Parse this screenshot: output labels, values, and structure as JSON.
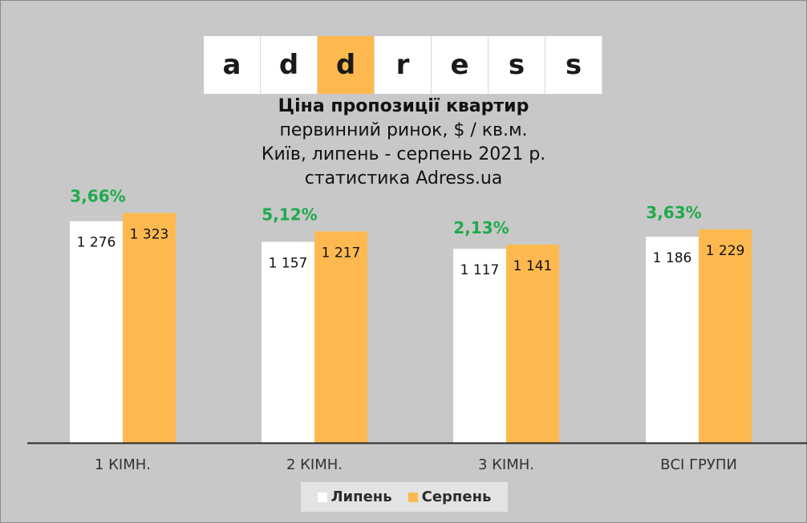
{
  "logo": {
    "letters": [
      "a",
      "d",
      "d",
      "r",
      "e",
      "s",
      "s"
    ],
    "highlight_index": 2,
    "accent_color": "#fdb94f"
  },
  "titles": {
    "title": "Ціна пропозиції квартир",
    "line2": "первинний ринок, $ / кв.м.",
    "line3": "Київ, липень - серпень 2021 р.",
    "line4": "статистика  Adress.ua"
  },
  "chart_data": {
    "type": "bar",
    "categories": [
      "1 КІМН.",
      "2 КІМН.",
      "3 КІМН.",
      "ВСІ ГРУПИ"
    ],
    "series": [
      {
        "name": "Липень",
        "values": [
          1276,
          1157,
          1117,
          1186
        ],
        "labels": [
          "1 276",
          "1 157",
          "1 117",
          "1 186"
        ],
        "color": "#ffffff"
      },
      {
        "name": "Серпень",
        "values": [
          1323,
          1217,
          1141,
          1229
        ],
        "labels": [
          "1 323",
          "1 217",
          "1 141",
          "1 229"
        ],
        "color": "#fdb94f"
      }
    ],
    "changes": [
      "3,66%",
      "5,12%",
      "2,13%",
      "3,63%"
    ],
    "change_color": "#1faa4d",
    "legend_position": "bottom"
  }
}
